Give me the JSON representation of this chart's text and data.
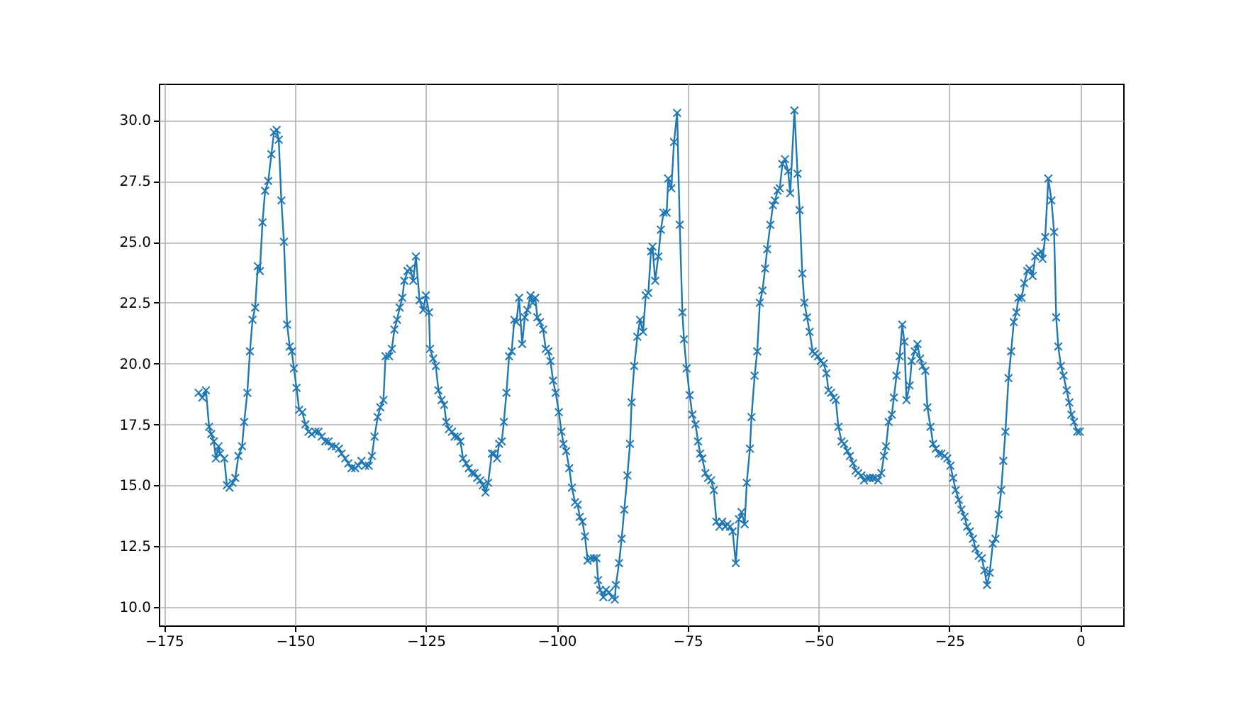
{
  "chart_data": {
    "type": "line",
    "marker": "cross",
    "grid": true,
    "xlim": [
      -176,
      8.2
    ],
    "ylim": [
      9.24,
      31.5
    ],
    "xticks": [
      -175,
      -150,
      -125,
      -100,
      -75,
      -50,
      -25,
      0
    ],
    "yticks": [
      {
        "value": 10,
        "label": "10.0"
      },
      {
        "value": 12.5,
        "label": "12.5"
      },
      {
        "value": 15,
        "label": "15.0"
      },
      {
        "value": 17.5,
        "label": "17.5"
      },
      {
        "value": 20,
        "label": "20.0"
      },
      {
        "value": 22.5,
        "label": "22.5"
      },
      {
        "value": 25,
        "label": "25.0"
      },
      {
        "value": 27.5,
        "label": "27.5"
      },
      {
        "value": 30,
        "label": "30.0"
      }
    ],
    "series": [
      {
        "color": "#1f77b4",
        "x": [
          -168.4,
          -167.7,
          -167.0,
          -166.4,
          -166.0,
          -165.5,
          -165.1,
          -164.6,
          -164.3,
          -163.5,
          -163.0,
          -162.5,
          -161.9,
          -161.4,
          -160.8,
          -160.1,
          -159.7,
          -159.1,
          -158.6,
          -158.1,
          -157.6,
          -157.1,
          -156.7,
          -156.2,
          -155.7,
          -155.1,
          -154.5,
          -154.0,
          -153.5,
          -153.1,
          -152.6,
          -152.1,
          -151.5,
          -151.0,
          -150.6,
          -150.2,
          -149.7,
          -149.2,
          -148.6,
          -148.0,
          -147.4,
          -146.8,
          -146.1,
          -145.5,
          -144.9,
          -144.2,
          -143.6,
          -143.0,
          -142.2,
          -141.6,
          -141.1,
          -140.4,
          -139.8,
          -139.2,
          -138.5,
          -137.9,
          -137.3,
          -136.6,
          -135.9,
          -135.3,
          -134.8,
          -134.2,
          -133.7,
          -133.1,
          -132.7,
          -132.0,
          -131.5,
          -131.0,
          -130.5,
          -130.0,
          -129.5,
          -129.1,
          -128.5,
          -128.0,
          -127.4,
          -126.9,
          -126.2,
          -125.5,
          -125.0,
          -124.4,
          -124.2,
          -123.6,
          -123.1,
          -122.6,
          -122.0,
          -121.5,
          -121.1,
          -120.6,
          -120.0,
          -119.5,
          -118.9,
          -118.4,
          -117.9,
          -117.3,
          -116.8,
          -116.2,
          -115.7,
          -115.2,
          -114.6,
          -114.1,
          -113.6,
          -113.1,
          -112.4,
          -112.0,
          -111.4,
          -111.0,
          -110.5,
          -110.1,
          -109.6,
          -109.1,
          -108.6,
          -108.1,
          -107.7,
          -107.2,
          -106.6,
          -106.1,
          -105.6,
          -105.0,
          -104.6,
          -104.1,
          -103.7,
          -103.2,
          -102.6,
          -102.1,
          -101.6,
          -101.2,
          -100.7,
          -100.2,
          -99.6,
          -99.1,
          -98.7,
          -98.2,
          -97.6,
          -97.1,
          -96.5,
          -96.0,
          -95.6,
          -95.1,
          -94.6,
          -94.1,
          -93.5,
          -92.9,
          -92.4,
          -92.1,
          -91.7,
          -91.1,
          -90.6,
          -90.0,
          -89.4,
          -88.9,
          -88.7,
          -88.1,
          -87.6,
          -87.1,
          -86.5,
          -86.0,
          -85.7,
          -85.2,
          -84.6,
          -84.1,
          -83.5,
          -83.0,
          -82.5,
          -82.0,
          -81.7,
          -81.2,
          -80.6,
          -80.1,
          -79.6,
          -79.0,
          -78.7,
          -78.1,
          -77.6,
          -77.0,
          -76.5,
          -76.0,
          -75.7,
          -75.2,
          -74.6,
          -74.1,
          -73.5,
          -73.0,
          -72.6,
          -72.2,
          -71.6,
          -71.1,
          -70.5,
          -70.0,
          -69.5,
          -68.9,
          -68.4,
          -67.8,
          -67.4,
          -66.9,
          -66.4,
          -65.8,
          -65.2,
          -64.7,
          -64.1,
          -63.7,
          -63.1,
          -62.8,
          -62.2,
          -61.7,
          -61.2,
          -60.7,
          -60.2,
          -59.8,
          -59.2,
          -58.7,
          -58.3,
          -57.8,
          -57.4,
          -56.9,
          -56.4,
          -55.8,
          -55.4,
          -54.6,
          -54.0,
          -53.6,
          -53.1,
          -52.7,
          -52.2,
          -51.7,
          -51.1,
          -50.7,
          -50.1,
          -49.6,
          -49.0,
          -48.5,
          -48.1,
          -47.6,
          -47.1,
          -46.7,
          -46.2,
          -45.6,
          -45.1,
          -44.5,
          -44.0,
          -43.4,
          -42.9,
          -42.4,
          -41.8,
          -41.3,
          -40.7,
          -40.2,
          -39.6,
          -39.1,
          -38.6,
          -38.0,
          -37.5,
          -37.1,
          -36.6,
          -36.0,
          -35.6,
          -35.1,
          -34.5,
          -34.0,
          -33.6,
          -33.2,
          -32.6,
          -32.2,
          -31.6,
          -31.1,
          -30.6,
          -30.1,
          -29.6,
          -29.2,
          -28.6,
          -28.1,
          -27.6,
          -27.0,
          -26.5,
          -25.9,
          -25.4,
          -24.8,
          -24.3,
          -23.8,
          -23.2,
          -22.7,
          -22.1,
          -21.6,
          -21.1,
          -20.5,
          -20.0,
          -19.4,
          -18.8,
          -18.3,
          -17.8,
          -17.3,
          -16.7,
          -16.2,
          -15.6,
          -15.1,
          -14.7,
          -14.3,
          -13.7,
          -13.2,
          -12.7,
          -12.2,
          -11.8,
          -11.2,
          -10.7,
          -10.1,
          -9.7,
          -9.1,
          -8.6,
          -8.1,
          -7.5,
          -7.2,
          -6.7,
          -6.1,
          -5.5,
          -5.0,
          -4.6,
          -4.2,
          -3.7,
          -3.2,
          -2.6,
          -2.1,
          -1.7,
          -1.2,
          -0.6,
          -0.1
        ],
        "values": [
          18.8,
          18.6,
          18.9,
          17.4,
          17.1,
          16.8,
          16.1,
          16.6,
          16.3,
          16.1,
          15.0,
          14.9,
          15.1,
          15.3,
          16.2,
          16.6,
          17.6,
          18.8,
          20.5,
          21.8,
          22.3,
          24.0,
          23.8,
          25.8,
          27.1,
          27.5,
          28.6,
          29.5,
          29.6,
          29.2,
          26.7,
          25.0,
          21.6,
          20.7,
          20.5,
          19.8,
          19.0,
          18.1,
          18.0,
          17.5,
          17.2,
          17.1,
          17.2,
          17.2,
          17.0,
          16.8,
          16.8,
          16.6,
          16.6,
          16.5,
          16.3,
          16.1,
          15.9,
          15.7,
          15.7,
          15.8,
          16.0,
          15.8,
          15.8,
          16.2,
          17.0,
          17.8,
          18.2,
          18.5,
          20.3,
          20.3,
          20.6,
          21.4,
          21.8,
          22.3,
          22.7,
          23.4,
          23.8,
          23.9,
          23.4,
          24.4,
          22.6,
          22.2,
          22.8,
          22.1,
          20.6,
          20.2,
          19.9,
          18.9,
          18.5,
          18.3,
          17.6,
          17.3,
          17.2,
          17.0,
          17.0,
          16.8,
          16.1,
          15.9,
          15.7,
          15.5,
          15.5,
          15.3,
          15.2,
          15.0,
          14.7,
          15.1,
          16.3,
          16.3,
          16.1,
          16.7,
          16.8,
          17.6,
          18.8,
          20.3,
          20.5,
          21.8,
          21.7,
          22.7,
          20.8,
          21.9,
          22.2,
          22.8,
          22.5,
          22.7,
          21.9,
          21.7,
          21.4,
          20.6,
          20.5,
          20.1,
          19.3,
          18.8,
          18.0,
          17.2,
          16.7,
          16.4,
          15.7,
          14.9,
          14.3,
          14.2,
          13.7,
          13.5,
          12.9,
          11.9,
          12.0,
          12.0,
          12.0,
          11.1,
          10.7,
          10.4,
          10.7,
          10.6,
          10.4,
          10.3,
          10.9,
          11.8,
          12.8,
          14.0,
          15.4,
          16.7,
          18.4,
          19.9,
          21.1,
          21.8,
          21.3,
          22.8,
          22.9,
          24.6,
          24.8,
          23.4,
          24.4,
          25.5,
          26.2,
          26.2,
          27.6,
          27.2,
          29.1,
          30.3,
          25.7,
          22.1,
          21.0,
          19.8,
          18.7,
          17.9,
          17.5,
          16.8,
          16.3,
          16.1,
          15.5,
          15.3,
          15.2,
          14.8,
          13.5,
          13.3,
          13.5,
          13.3,
          13.4,
          13.3,
          13.1,
          11.8,
          13.6,
          13.9,
          13.4,
          15.1,
          16.5,
          17.8,
          19.5,
          20.5,
          22.5,
          23.0,
          23.9,
          24.7,
          25.7,
          26.5,
          26.7,
          27.1,
          27.2,
          28.2,
          28.4,
          27.9,
          27.0,
          30.4,
          27.8,
          26.3,
          23.7,
          22.5,
          21.9,
          21.3,
          20.5,
          20.4,
          20.3,
          20.1,
          20.0,
          19.6,
          18.9,
          18.8,
          18.6,
          18.5,
          17.4,
          16.8,
          16.7,
          16.4,
          16.2,
          15.9,
          15.6,
          15.5,
          15.4,
          15.2,
          15.3,
          15.3,
          15.3,
          15.3,
          15.2,
          15.5,
          16.2,
          16.6,
          17.6,
          17.9,
          18.6,
          19.5,
          20.3,
          21.6,
          20.9,
          18.5,
          19.1,
          20.1,
          20.5,
          20.8,
          20.2,
          19.9,
          19.7,
          18.2,
          17.4,
          16.7,
          16.5,
          16.3,
          16.3,
          16.2,
          16.1,
          15.8,
          15.3,
          14.8,
          14.4,
          14.0,
          13.7,
          13.3,
          13.1,
          12.8,
          12.4,
          12.1,
          12.0,
          11.5,
          10.9,
          11.4,
          12.6,
          12.8,
          13.8,
          14.8,
          16.0,
          17.2,
          19.4,
          20.5,
          21.7,
          22.1,
          22.7,
          22.7,
          23.3,
          23.8,
          23.9,
          23.6,
          24.4,
          24.5,
          24.6,
          24.3,
          25.2,
          27.6,
          26.7,
          25.4,
          21.9,
          20.7,
          19.9,
          19.5,
          18.9,
          18.4,
          17.9,
          17.6,
          17.2,
          17.2
        ]
      }
    ]
  }
}
